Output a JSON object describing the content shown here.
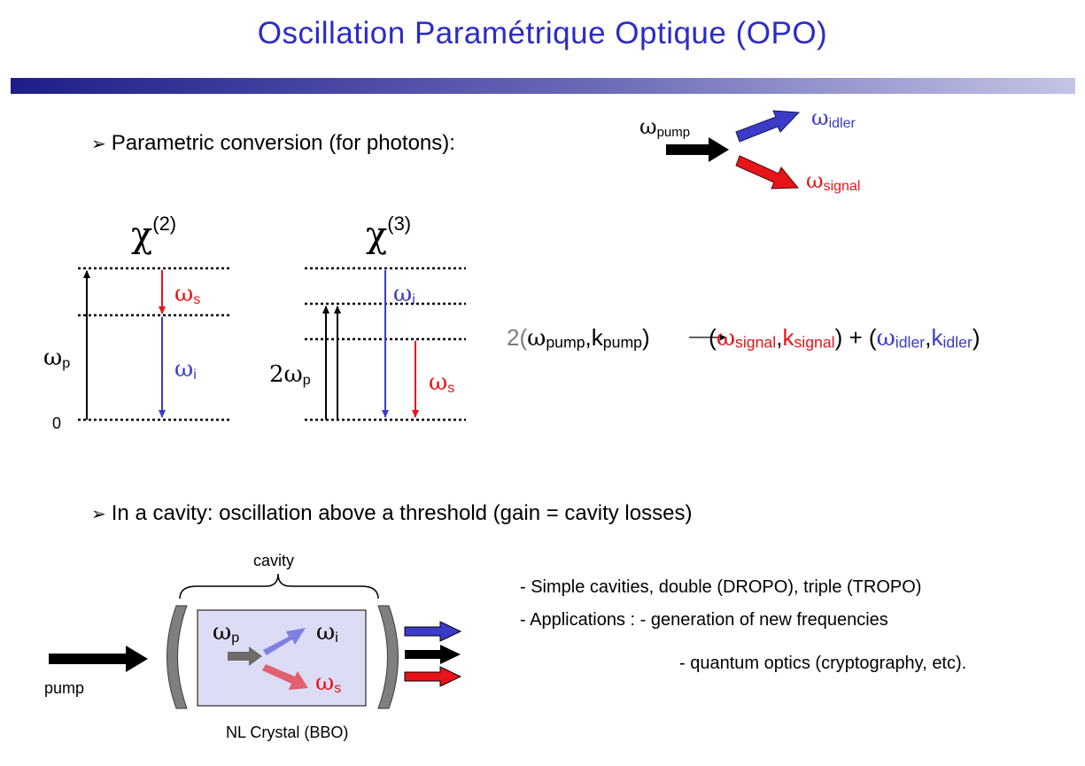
{
  "title": "Oscillation Paramétrique Optique (OPO)",
  "bullet1": "Parametric conversion (for photons):",
  "bullet2": "In a cavity: oscillation above a threshold (gain = cavity losses)",
  "fig_top": {
    "omega": "ω",
    "pump_sub": "pump",
    "idler_sub": "idler",
    "signal_sub": "signal"
  },
  "chi2": {
    "chi": "χ",
    "order": "(2)",
    "omega": "ω",
    "p": "p",
    "s": "s",
    "i": "i",
    "zero": "0"
  },
  "chi3": {
    "chi": "χ",
    "order": "(3)",
    "omega": "ω",
    "two": "2",
    "p": "p",
    "s": "s",
    "i": "i"
  },
  "equation": {
    "lhs_prefix": "2(",
    "omega": "ω",
    "pump": "pump",
    "k": "k",
    "comma": ",",
    "close": ")",
    "open": "(",
    "signal": "signal",
    "plus": " + (",
    "idler": "idler"
  },
  "cavity": {
    "cavity_label": "cavity",
    "pump_label": "pump",
    "crystal_label": "NL Crystal (BBO)",
    "omega": "ω",
    "p": "p",
    "i": "i",
    "s": "s"
  },
  "notes": [
    "- Simple cavities, double (DROPO), triple (TROPO)",
    "- Applications :  - generation of new frequencies",
    "- quantum optics (cryptography, etc)."
  ],
  "colors": {
    "title": "#2b2bc8",
    "red": "#e8141a",
    "blue": "#3b3bc8",
    "crystal": "#dcdcf5"
  }
}
